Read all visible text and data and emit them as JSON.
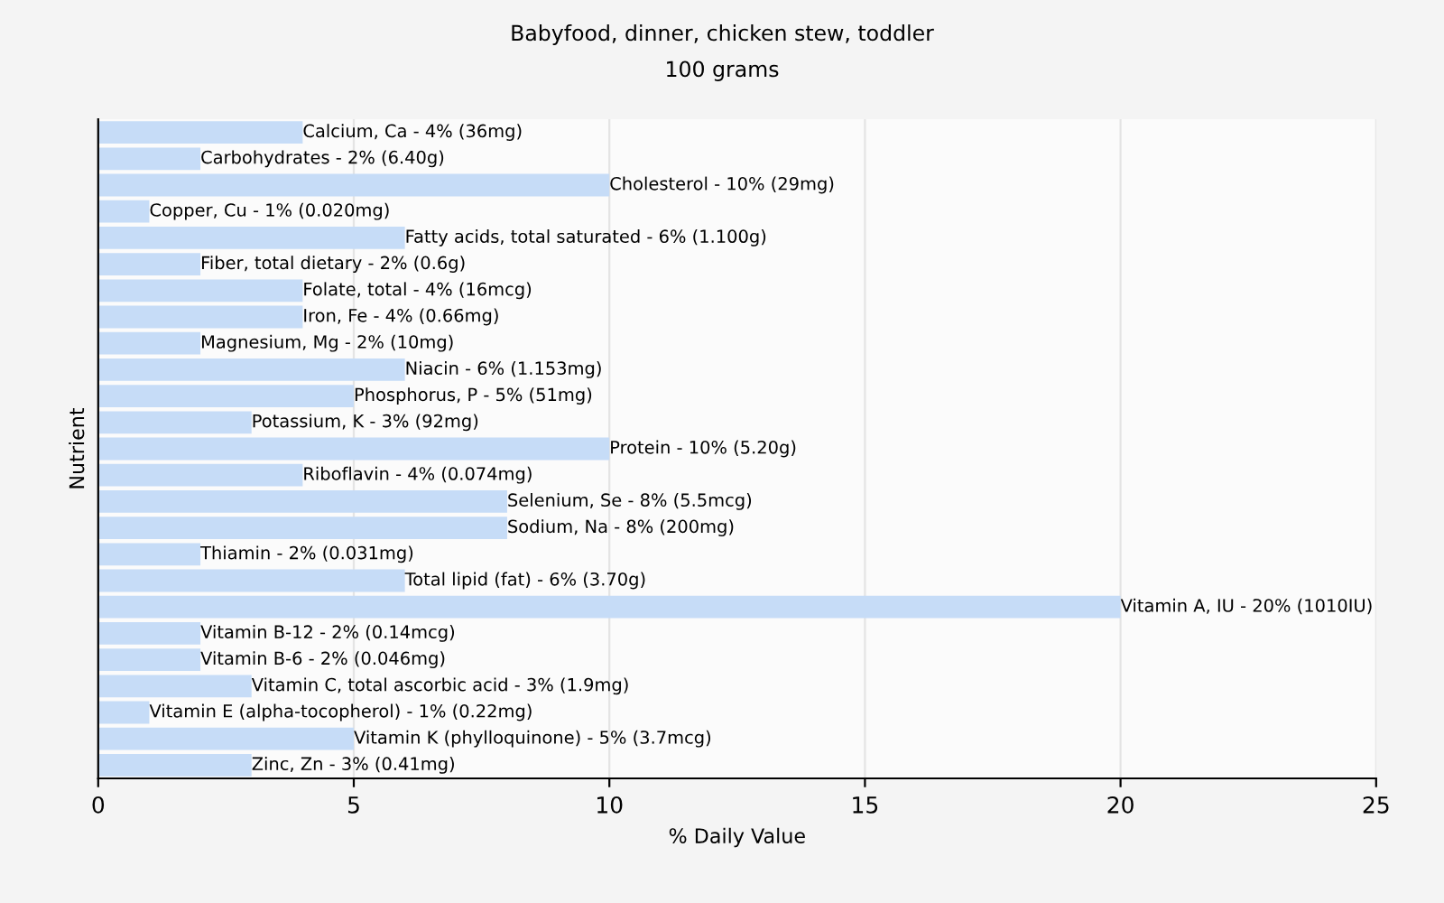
{
  "chart_data": {
    "type": "bar",
    "orientation": "horizontal",
    "title": "Babyfood, dinner, chicken stew, toddler",
    "subtitle": "100 grams",
    "xlabel": "% Daily Value",
    "ylabel": "Nutrient",
    "categories": [
      "Calcium, Ca - 4% (36mg)",
      "Carbohydrates - 2% (6.40g)",
      "Cholesterol - 10% (29mg)",
      "Copper, Cu - 1% (0.020mg)",
      "Fatty acids, total saturated - 6% (1.100g)",
      "Fiber, total dietary - 2% (0.6g)",
      "Folate, total - 4% (16mcg)",
      "Iron, Fe - 4% (0.66mg)",
      "Magnesium, Mg - 2% (10mg)",
      "Niacin - 6% (1.153mg)",
      "Phosphorus, P - 5% (51mg)",
      "Potassium, K - 3% (92mg)",
      "Protein - 10% (5.20g)",
      "Riboflavin - 4% (0.074mg)",
      "Selenium, Se - 8% (5.5mcg)",
      "Sodium, Na - 8% (200mg)",
      "Thiamin - 2% (0.031mg)",
      "Total lipid (fat) - 6% (3.70g)",
      "Vitamin A, IU - 20% (1010IU)",
      "Vitamin B-12 - 2% (0.14mcg)",
      "Vitamin B-6 - 2% (0.046mg)",
      "Vitamin C, total ascorbic acid - 3% (1.9mg)",
      "Vitamin E (alpha-tocopherol) - 1% (0.22mg)",
      "Vitamin K (phylloquinone) - 5% (3.7mcg)",
      "Zinc, Zn - 3% (0.41mg)"
    ],
    "values": [
      4,
      2,
      10,
      1,
      6,
      2,
      4,
      4,
      2,
      6,
      5,
      3,
      10,
      4,
      8,
      8,
      2,
      6,
      20,
      2,
      2,
      3,
      1,
      5,
      3
    ],
    "color": "#c6dcf7",
    "xlim": [
      0,
      25
    ],
    "xticks": [
      0,
      5,
      10,
      15,
      20,
      25
    ],
    "grid": "x",
    "legend": false
  }
}
